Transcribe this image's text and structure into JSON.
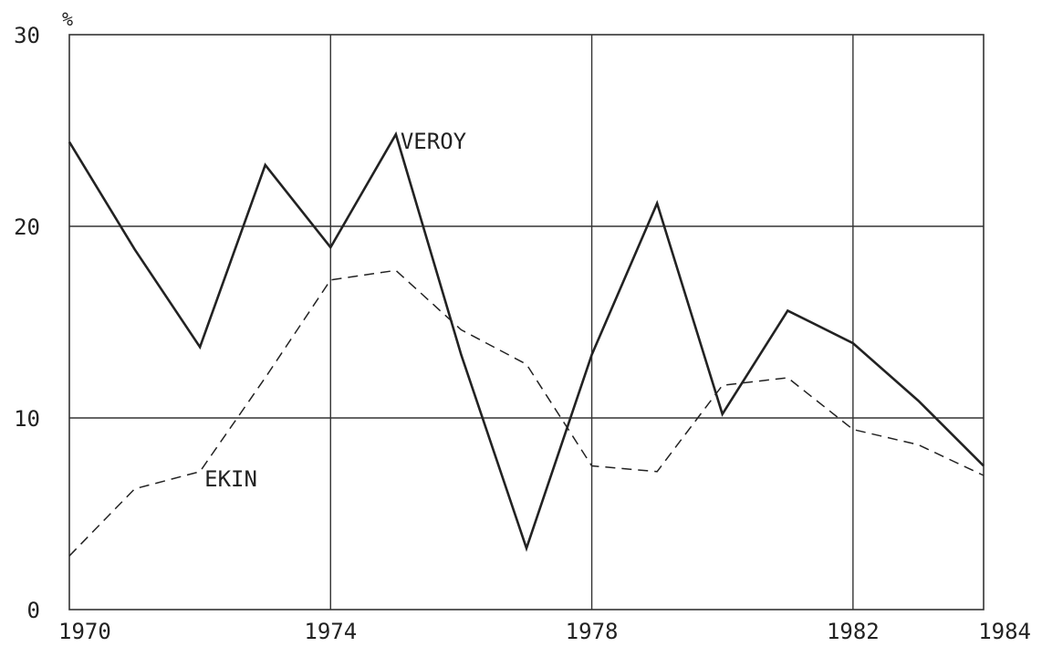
{
  "chart_data": {
    "type": "line",
    "title": "",
    "xlabel": "",
    "ylabel": "%",
    "xlim": [
      1970,
      1984
    ],
    "ylim": [
      0,
      30
    ],
    "x_ticks": [
      1970,
      1974,
      1978,
      1982,
      1984
    ],
    "y_ticks": [
      0,
      10,
      20,
      30
    ],
    "grid": true,
    "legend": "inline labels",
    "x": [
      1970,
      1971,
      1972,
      1973,
      1974,
      1975,
      1976,
      1977,
      1978,
      1979,
      1980,
      1981,
      1982,
      1983,
      1984
    ],
    "series": [
      {
        "name": "VEROY",
        "style": "solid",
        "color": "#222222",
        "values": [
          24.4,
          18.8,
          13.7,
          23.2,
          18.9,
          24.8,
          13.3,
          3.2,
          13.3,
          21.2,
          10.2,
          15.6,
          13.9,
          10.9,
          7.5
        ]
      },
      {
        "name": "EKIN",
        "style": "dashed",
        "color": "#222222",
        "values": [
          2.8,
          6.3,
          7.2,
          12.1,
          17.2,
          17.7,
          14.6,
          12.8,
          7.5,
          7.2,
          11.7,
          12.1,
          9.4,
          8.6,
          7.0
        ]
      }
    ],
    "annotations": [
      {
        "text": "VEROY",
        "series": "VEROY",
        "x": 1975
      },
      {
        "text": "EKIN",
        "series": "EKIN",
        "x": 1972
      }
    ]
  }
}
